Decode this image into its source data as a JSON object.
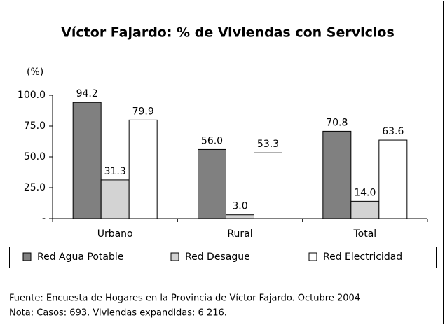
{
  "chart_data": {
    "type": "bar",
    "title": "Víctor Fajardo: % de Viviendas con Servicios",
    "y_label": "(%)",
    "categories": [
      "Urbano",
      "Rural",
      "Total"
    ],
    "series": [
      {
        "name": "Red Agua Potable",
        "color": "#808080",
        "values": [
          94.2,
          56.0,
          70.8
        ],
        "value_labels": [
          "94.2",
          "56.0",
          "70.8"
        ]
      },
      {
        "name": "Red Desague",
        "color": "#d3d3d3",
        "values": [
          31.3,
          3.0,
          14.0
        ],
        "value_labels": [
          "31.3",
          "3.0",
          "14.0"
        ]
      },
      {
        "name": "Red Electricidad",
        "color": "#ffffff",
        "values": [
          79.9,
          53.3,
          63.6
        ],
        "value_labels": [
          "79.9",
          "53.3",
          "63.6"
        ]
      }
    ],
    "ylim": [
      0,
      100
    ],
    "yticks": [
      {
        "value": 0,
        "label": "-"
      },
      {
        "value": 25,
        "label": "25.0"
      },
      {
        "value": 50,
        "label": "50.0"
      },
      {
        "value": 75,
        "label": "75.0"
      },
      {
        "value": 100,
        "label": "100.0"
      }
    ],
    "legend": "bottom",
    "notes": [
      "Fuente: Encuesta de Hogares en la Provincia de Víctor Fajardo. Octubre 2004",
      "Nota: Casos: 693. Viviendas expandidas: 6 216."
    ]
  }
}
